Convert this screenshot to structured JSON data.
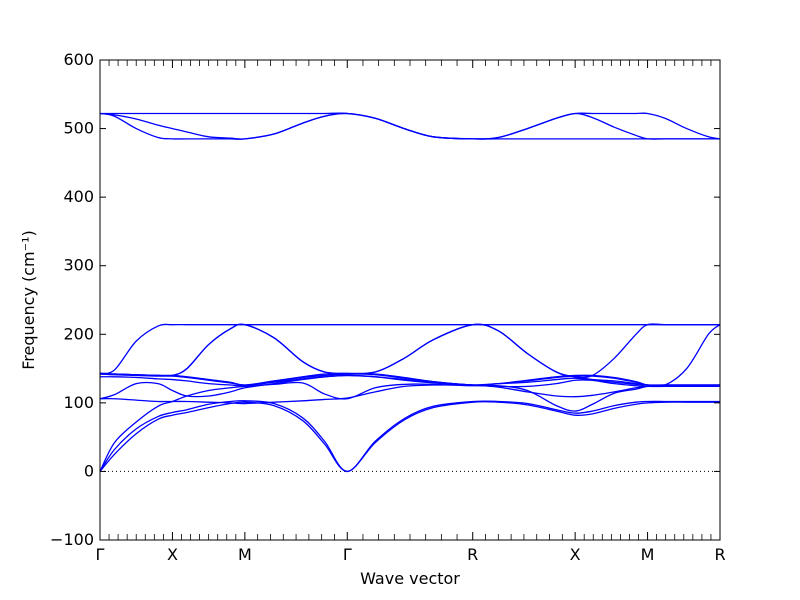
{
  "chart_data": {
    "type": "line",
    "title": "",
    "xlabel": "Wave vector",
    "ylabel": "Frequency (cm⁻¹)",
    "ylim": [
      -100,
      600
    ],
    "y_ticks": [
      -100,
      0,
      100,
      200,
      300,
      400,
      500,
      600
    ],
    "x_ticks": [
      {
        "x": 0.0,
        "label": "Γ"
      },
      {
        "x": 0.5,
        "label": "X"
      },
      {
        "x": 1.0,
        "label": "M"
      },
      {
        "x": 1.707,
        "label": "Γ"
      },
      {
        "x": 2.573,
        "label": "R"
      },
      {
        "x": 3.28,
        "label": "X"
      },
      {
        "x": 3.78,
        "label": "M"
      },
      {
        "x": 4.28,
        "label": "R"
      }
    ],
    "xlim": [
      0,
      4.28
    ],
    "zero_line": {
      "y": 0,
      "style": "dotted"
    },
    "line_color": "#0000ff",
    "grid": false,
    "series": [
      {
        "values_x": [
          0,
          0.1,
          0.25,
          0.4,
          0.5,
          0.6,
          0.75,
          0.9,
          1.0,
          1.2,
          1.4,
          1.55,
          1.707,
          1.9,
          2.1,
          2.3,
          2.573,
          2.75,
          2.95,
          3.15,
          3.28,
          3.4,
          3.55,
          3.7,
          3.78,
          3.9,
          4.05,
          4.2,
          4.28
        ],
        "values_y": [
          0,
          25,
          55,
          76,
          82,
          86,
          93,
          99,
          101,
          96,
          74,
          40,
          0,
          42,
          75,
          93,
          101,
          101,
          97,
          88,
          82,
          84,
          92,
          98,
          100,
          101,
          101,
          101,
          101
        ]
      },
      {
        "values_x": [
          0,
          0.1,
          0.25,
          0.4,
          0.5,
          0.6,
          0.75,
          0.9,
          1.0,
          1.2,
          1.4,
          1.55,
          1.707,
          1.9,
          2.1,
          2.3,
          2.573,
          2.75,
          2.95,
          3.15,
          3.28,
          3.4,
          3.55,
          3.7,
          3.78,
          3.9,
          4.05,
          4.2,
          4.28
        ],
        "values_y": [
          0,
          32,
          62,
          80,
          86,
          90,
          98,
          102,
          103,
          99,
          78,
          44,
          0,
          44,
          77,
          95,
          102,
          102,
          99,
          90,
          85,
          88,
          96,
          101,
          102,
          102,
          102,
          102,
          102
        ]
      },
      {
        "values_x": [
          0,
          0.1,
          0.25,
          0.4,
          0.5,
          0.6,
          0.75,
          0.9,
          1.0,
          1.2,
          1.4,
          1.55,
          1.707,
          1.9,
          2.1,
          2.3,
          2.573,
          2.75,
          2.95,
          3.15,
          3.28,
          3.4,
          3.55,
          3.7,
          3.78,
          3.9,
          4.05,
          4.2,
          4.28
        ],
        "values_y": [
          0,
          42,
          72,
          95,
          102,
          110,
          118,
          122,
          124,
          127,
          129,
          113,
          106,
          122,
          127,
          127,
          125,
          125,
          118,
          96,
          88,
          98,
          114,
          120,
          124,
          124,
          124,
          124,
          124
        ]
      },
      {
        "values_x": [
          0,
          0.1,
          0.25,
          0.4,
          0.5,
          0.6,
          0.75,
          0.9,
          1.0,
          1.2,
          1.4,
          1.55,
          1.707,
          1.9,
          2.1,
          2.3,
          2.573,
          2.75,
          2.95,
          3.15,
          3.28,
          3.4,
          3.55,
          3.7,
          3.78,
          3.9,
          4.05,
          4.2,
          4.28
        ],
        "values_y": [
          106,
          106,
          104,
          102,
          102,
          102,
          101,
          100,
          99,
          101,
          103,
          105,
          107,
          116,
          124,
          126,
          126,
          128,
          130,
          134,
          136,
          133,
          128,
          125,
          124,
          124,
          124,
          124,
          124
        ]
      },
      {
        "values_x": [
          0,
          0.1,
          0.25,
          0.4,
          0.5,
          0.6,
          0.75,
          0.9,
          1.0,
          1.2,
          1.4,
          1.55,
          1.707,
          1.9,
          2.1,
          2.3,
          2.573,
          2.75,
          2.95,
          3.15,
          3.28,
          3.4,
          3.55,
          3.7,
          3.78,
          3.9,
          4.05,
          4.2,
          4.28
        ],
        "values_y": [
          106,
          112,
          128,
          128,
          118,
          110,
          110,
          116,
          122,
          128,
          134,
          138,
          140,
          138,
          133,
          129,
          126,
          123,
          116,
          110,
          109,
          111,
          116,
          122,
          124,
          124,
          124,
          124,
          124
        ]
      },
      {
        "values_x": [
          0,
          0.1,
          0.25,
          0.4,
          0.5,
          0.6,
          0.75,
          0.9,
          1.0,
          1.2,
          1.4,
          1.55,
          1.707,
          1.9,
          2.1,
          2.3,
          2.573,
          2.75,
          2.95,
          3.15,
          3.28,
          3.4,
          3.55,
          3.7,
          3.78,
          3.9,
          4.05,
          4.2,
          4.28
        ],
        "values_y": [
          138,
          138,
          137,
          135,
          134,
          132,
          128,
          126,
          125,
          130,
          135,
          138,
          140,
          138,
          134,
          130,
          126,
          124,
          124,
          128,
          133,
          133,
          130,
          127,
          126,
          126,
          126,
          126,
          126
        ]
      },
      {
        "values_x": [
          0,
          0.1,
          0.25,
          0.4,
          0.5,
          0.6,
          0.75,
          0.9,
          1.0,
          1.2,
          1.4,
          1.55,
          1.707,
          1.9,
          2.1,
          2.3,
          2.573,
          2.75,
          2.95,
          3.15,
          3.28,
          3.4,
          3.55,
          3.7,
          3.78,
          3.9,
          4.05,
          4.2,
          4.28
        ],
        "values_y": [
          142,
          141,
          140,
          139,
          139,
          137,
          133,
          129,
          126,
          131,
          137,
          140,
          142,
          141,
          136,
          131,
          126,
          128,
          132,
          137,
          139,
          139,
          136,
          130,
          126,
          126,
          126,
          126,
          126
        ]
      },
      {
        "values_x": [
          0,
          0.1,
          0.25,
          0.4,
          0.5,
          0.6,
          0.75,
          0.9,
          1.0,
          1.2,
          1.4,
          1.55,
          1.707,
          1.9,
          2.1,
          2.3,
          2.573,
          2.75,
          2.95,
          3.15,
          3.28,
          3.4,
          3.55,
          3.7,
          3.78,
          3.9,
          4.05,
          4.2,
          4.28
        ],
        "values_y": [
          142,
          142,
          141,
          140,
          140,
          138,
          134,
          130,
          126,
          132,
          138,
          142,
          142,
          142,
          137,
          131,
          126,
          128,
          133,
          138,
          140,
          140,
          137,
          131,
          126,
          126,
          126,
          126,
          126
        ]
      },
      {
        "values_x": [
          0,
          0.1,
          0.25,
          0.4,
          0.5,
          0.6,
          0.75,
          0.9,
          1.0,
          1.2,
          1.4,
          1.55,
          1.707,
          1.9,
          2.1,
          2.3,
          2.573,
          2.75,
          2.95,
          3.15,
          3.28,
          3.4,
          3.55,
          3.7,
          3.78,
          3.9,
          4.05,
          4.2,
          4.28
        ],
        "values_y": [
          143,
          148,
          190,
          212,
          214,
          214,
          214,
          214,
          214,
          214,
          214,
          214,
          214,
          214,
          214,
          214,
          214,
          214,
          214,
          214,
          214,
          214,
          214,
          214,
          214,
          214,
          214,
          214,
          214
        ]
      },
      {
        "values_x": [
          0,
          0.1,
          0.25,
          0.4,
          0.5,
          0.6,
          0.75,
          0.9,
          1.0,
          1.2,
          1.4,
          1.55,
          1.707,
          1.9,
          2.1,
          2.3,
          2.573,
          2.75,
          2.95,
          3.15,
          3.28,
          3.4,
          3.55,
          3.7,
          3.78,
          3.9,
          4.05,
          4.2,
          4.28
        ],
        "values_y": [
          143,
          142,
          141,
          140,
          140,
          150,
          185,
          208,
          214,
          195,
          160,
          145,
          143,
          145,
          165,
          192,
          214,
          205,
          172,
          145,
          138,
          140,
          165,
          200,
          214,
          214,
          214,
          214,
          214
        ]
      },
      {
        "values_x": [
          0,
          0.1,
          0.25,
          0.4,
          0.5,
          0.6,
          0.75,
          0.9,
          1.0,
          1.2,
          1.4,
          1.55,
          1.707,
          1.9,
          2.1,
          2.3,
          2.573,
          2.75,
          2.95,
          3.15,
          3.28,
          3.4,
          3.55,
          3.7,
          3.78,
          3.9,
          4.05,
          4.2,
          4.28
        ],
        "values_y": [
          143,
          142,
          141,
          140,
          140,
          150,
          185,
          208,
          214,
          195,
          160,
          145,
          143,
          145,
          165,
          192,
          214,
          205,
          172,
          145,
          138,
          134,
          132,
          128,
          126,
          126,
          150,
          200,
          214
        ]
      },
      {
        "values_x": [
          0,
          0.1,
          0.25,
          0.4,
          0.5,
          0.6,
          0.75,
          0.9,
          1.0,
          1.2,
          1.4,
          1.55,
          1.707,
          1.9,
          2.1,
          2.3,
          2.573,
          2.75,
          2.95,
          3.15,
          3.28,
          3.4,
          3.55,
          3.7,
          3.78,
          3.9,
          4.05,
          4.2,
          4.28
        ],
        "values_y": [
          522,
          522,
          522,
          522,
          522,
          522,
          522,
          522,
          522,
          522,
          522,
          522,
          522,
          515,
          500,
          488,
          485,
          487,
          500,
          515,
          522,
          522,
          522,
          522,
          522,
          515,
          500,
          488,
          485
        ]
      },
      {
        "values_x": [
          0,
          0.1,
          0.25,
          0.4,
          0.5,
          0.6,
          0.75,
          0.9,
          1.0,
          1.2,
          1.4,
          1.55,
          1.707,
          1.9,
          2.1,
          2.3,
          2.573,
          2.75,
          2.95,
          3.15,
          3.28,
          3.4,
          3.55,
          3.7,
          3.78,
          3.9,
          4.05,
          4.2,
          4.28
        ],
        "values_y": [
          522,
          520,
          514,
          505,
          500,
          495,
          488,
          486,
          485,
          492,
          508,
          518,
          522,
          515,
          500,
          488,
          485,
          487,
          500,
          515,
          522,
          516,
          502,
          490,
          485,
          485,
          485,
          485,
          485
        ]
      },
      {
        "values_x": [
          0,
          0.1,
          0.25,
          0.4,
          0.5,
          0.6,
          0.75,
          0.9,
          1.0,
          1.2,
          1.4,
          1.55,
          1.707,
          1.9,
          2.1,
          2.3,
          2.573,
          2.75,
          2.95,
          3.15,
          3.28,
          3.4,
          3.55,
          3.7,
          3.78,
          3.9,
          4.05,
          4.2,
          4.28
        ],
        "values_y": [
          522,
          518,
          500,
          487,
          485,
          485,
          485,
          485,
          485,
          492,
          508,
          518,
          522,
          515,
          500,
          488,
          485,
          485,
          485,
          485,
          485,
          485,
          485,
          485,
          485,
          485,
          485,
          485,
          485
        ]
      }
    ]
  }
}
